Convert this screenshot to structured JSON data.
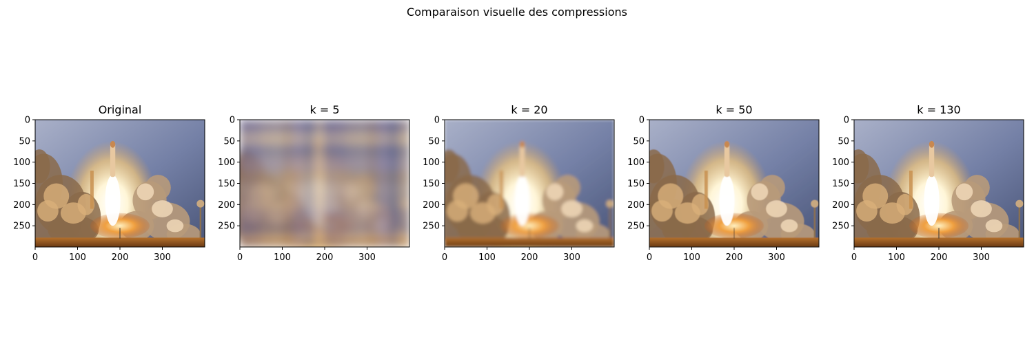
{
  "figure": {
    "title": "Comparaison visuelle des compressions"
  },
  "chart_data": [
    {
      "type": "image",
      "title": "Original",
      "k": null,
      "xticks": [
        0,
        100,
        200,
        300
      ],
      "yticks": [
        0,
        50,
        100,
        150,
        200,
        250
      ],
      "xlim": [
        0,
        400
      ],
      "ylim": [
        300,
        0
      ],
      "blur": 0
    },
    {
      "type": "image",
      "title": "k = 5",
      "k": 5,
      "xticks": [
        0,
        100,
        200,
        300
      ],
      "yticks": [
        0,
        50,
        100,
        150,
        200,
        250
      ],
      "xlim": [
        0,
        400
      ],
      "ylim": [
        300,
        0
      ],
      "blur": 1
    },
    {
      "type": "image",
      "title": "k = 20",
      "k": 20,
      "xticks": [
        0,
        100,
        200,
        300
      ],
      "yticks": [
        0,
        50,
        100,
        150,
        200,
        250
      ],
      "xlim": [
        0,
        400
      ],
      "ylim": [
        300,
        0
      ],
      "blur": 0.35
    },
    {
      "type": "image",
      "title": "k = 50",
      "k": 50,
      "xticks": [
        0,
        100,
        200,
        300
      ],
      "yticks": [
        0,
        50,
        100,
        150,
        200,
        250
      ],
      "xlim": [
        0,
        400
      ],
      "ylim": [
        300,
        0
      ],
      "blur": 0.1
    },
    {
      "type": "image",
      "title": "k = 130",
      "k": 130,
      "xticks": [
        0,
        100,
        200,
        300
      ],
      "yticks": [
        0,
        50,
        100,
        150,
        200,
        250
      ],
      "xlim": [
        0,
        400
      ],
      "ylim": [
        300,
        0
      ],
      "blur": 0
    }
  ]
}
